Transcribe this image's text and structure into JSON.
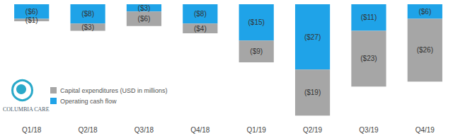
{
  "chart_data": {
    "type": "bar",
    "stacked": true,
    "data_labels": true,
    "tick_labels": "x",
    "grid": false,
    "legend": "bottom-left",
    "categories": [
      "Q1/18",
      "Q2/18",
      "Q3/18",
      "Q4/18",
      "Q1/19",
      "Q2/19",
      "Q3/19",
      "Q4/19"
    ],
    "series": [
      {
        "name": "Capital expenditures (USD in millions)",
        "color": "#a6a6a6",
        "values": [
          -1,
          -3,
          -6,
          -4,
          -9,
          -19,
          -23,
          -26
        ],
        "value_labels": [
          "($1)",
          "($3)",
          "($6)",
          "($4)",
          "($9)",
          "($19)",
          "($23)",
          "($26)"
        ]
      },
      {
        "name": "Operating cash flow",
        "color": "#1fa3e8",
        "values": [
          -6,
          -8,
          -3,
          -8,
          -15,
          -27,
          -11,
          -6
        ],
        "value_labels": [
          "($6)",
          "($8)",
          "($3)",
          "($8)",
          "($15)",
          "($27)",
          "($11)",
          "($6)"
        ]
      }
    ],
    "ylim": [
      -48,
      0
    ],
    "yticks": [
      -48,
      0
    ],
    "annotations": [
      "COLUMBIA CARE"
    ]
  }
}
